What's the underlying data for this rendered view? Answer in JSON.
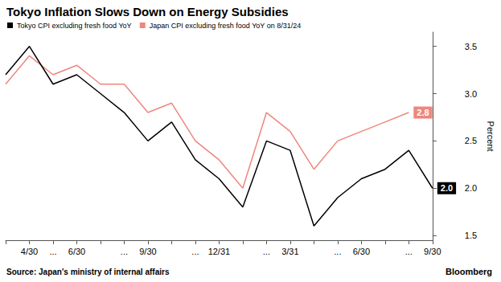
{
  "chart_data": {
    "type": "line",
    "title": "Tokyo Inflation Slows Down on Energy Subsidies",
    "categories": [
      null,
      "4/30",
      "...",
      "6/30",
      null,
      "...",
      "9/30",
      null,
      "...",
      "12/31",
      null,
      "...",
      "3/31",
      null,
      "...",
      "6/30",
      null,
      "...",
      "9/30"
    ],
    "series": [
      {
        "name": "Tokyo CPI excluding fresh food YoY",
        "color": "#000000",
        "values": [
          3.2,
          3.5,
          3.1,
          3.2,
          3.0,
          2.8,
          2.5,
          2.7,
          2.3,
          2.1,
          1.8,
          2.5,
          2.4,
          1.6,
          1.9,
          2.1,
          2.2,
          2.4,
          2.0
        ],
        "value_labels": [
          null,
          null,
          null,
          null,
          null,
          null,
          null,
          null,
          null,
          null,
          null,
          null,
          null,
          null,
          null,
          null,
          null,
          null,
          "2.0"
        ]
      },
      {
        "name": "Japan CPI excluding fresh food YoY on 8/31/24",
        "color": "#f0867c",
        "values": [
          3.1,
          3.4,
          3.2,
          3.3,
          3.1,
          3.1,
          2.8,
          2.9,
          2.5,
          2.3,
          2.0,
          2.8,
          2.6,
          2.2,
          2.5,
          2.6,
          2.7,
          2.8,
          null
        ],
        "value_labels": [
          null,
          null,
          null,
          null,
          null,
          null,
          null,
          null,
          null,
          null,
          null,
          null,
          null,
          null,
          null,
          null,
          null,
          "2.8",
          null
        ]
      }
    ],
    "y_label": "Percent",
    "ylim": [
      1.45,
      3.65
    ],
    "yticks": [
      1.5,
      {
        "value": 2,
        "label": "2.0"
      },
      2.5,
      {
        "value": 3,
        "label": "3.0"
      },
      3.5
    ],
    "source": "Source: Japan's ministry of internal affairs",
    "credit": "Bloomberg",
    "legend": "top-left",
    "grid": false
  }
}
